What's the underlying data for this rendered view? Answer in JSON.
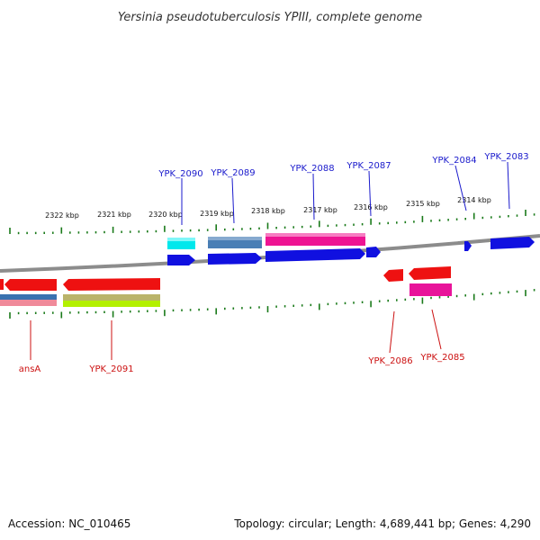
{
  "title": "Yersinia pseudotuberculosis YPIII, complete genome",
  "accession": "Accession: NC_010465",
  "topology": "Topology: circular; Length: 4,689,441 bp; Genes: 4,290",
  "colors": {
    "tick": "#1a7a1a",
    "backbone": "#8c8c8c",
    "forward_label": "#1a1acc",
    "reverse_label": "#cc1111"
  },
  "scale_labels": [
    "2322 kbp",
    "2321 kbp",
    "2320 kbp",
    "2319 kbp",
    "2318 kbp",
    "2317 kbp",
    "2316 kbp",
    "2315 kbp",
    "2314 kbp"
  ],
  "forward_gene_labels": [
    "YPK_2090",
    "YPK_2089",
    "YPK_2088",
    "YPK_2087",
    "YPK_2084",
    "YPK_2083"
  ],
  "reverse_gene_labels": [
    "ansA",
    "YPK_2091",
    "YPK_2086",
    "YPK_2085"
  ]
}
